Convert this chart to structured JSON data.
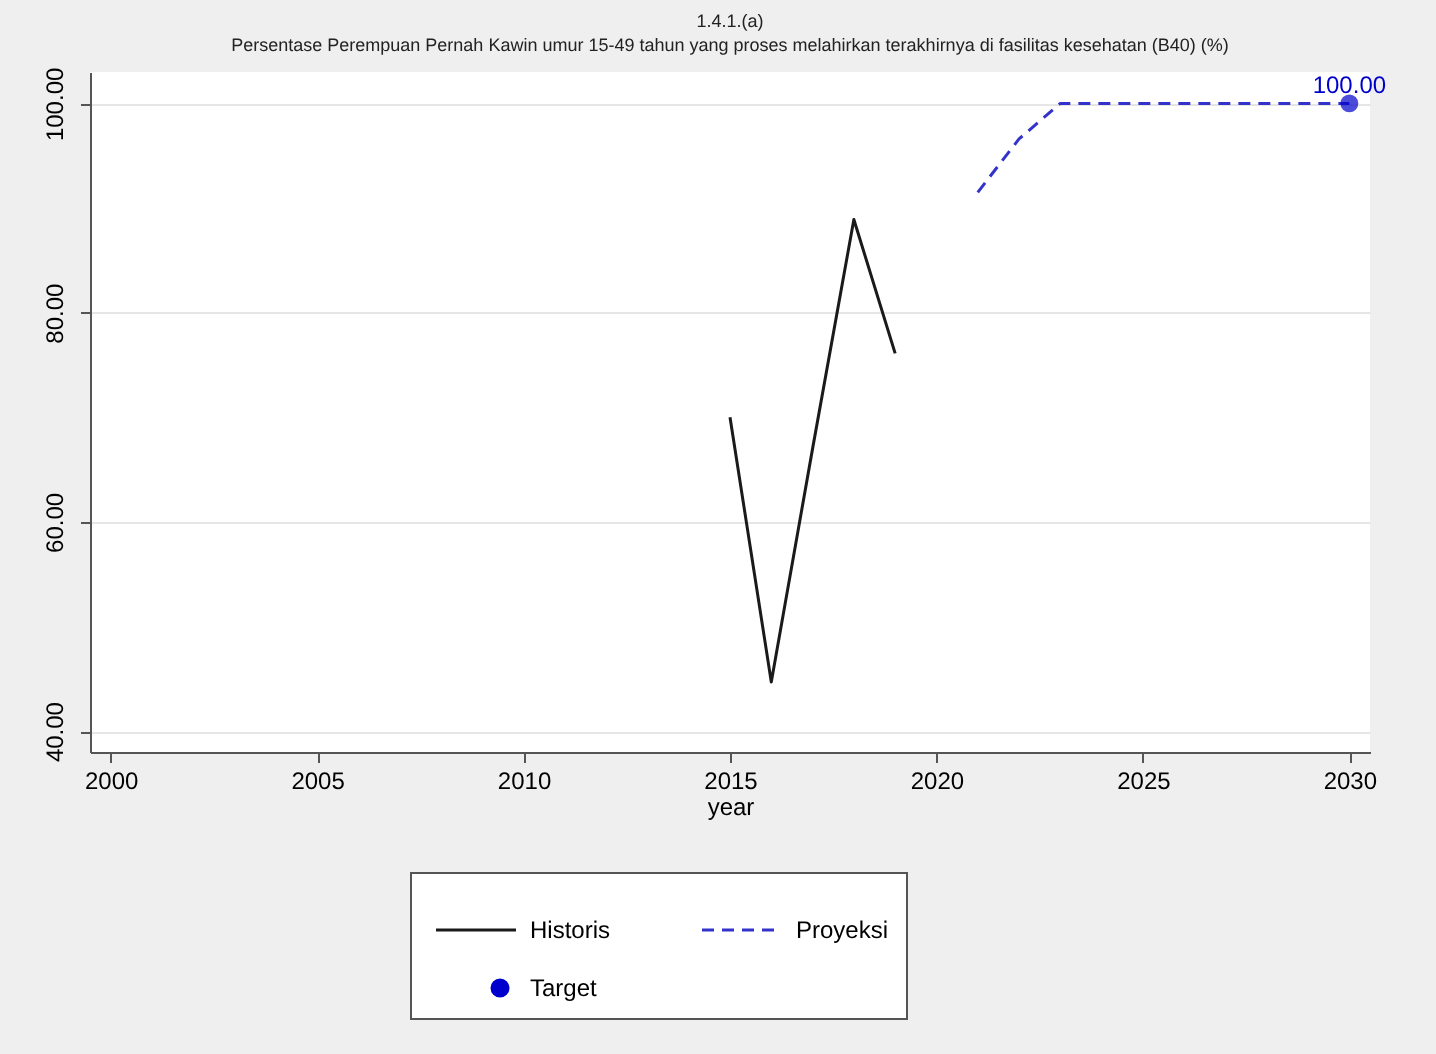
{
  "chart_data": {
    "type": "line",
    "title": "1.4.1.(a)",
    "subtitle": "Persentase Perempuan Pernah Kawin umur 15-49 tahun yang proses melahirkan terakhirnya di fasilitas kesehatan (B40) (%)",
    "xlabel": "year",
    "xlim": [
      1999.5,
      2030.5
    ],
    "xticks": [
      2000,
      2005,
      2010,
      2015,
      2020,
      2025,
      2030
    ],
    "ylim": [
      38,
      103
    ],
    "yticks": [
      {
        "value": 40,
        "label": "40.00"
      },
      {
        "value": 60,
        "label": "60.00"
      },
      {
        "value": 80,
        "label": "80.00"
      },
      {
        "value": 100,
        "label": "100.00"
      }
    ],
    "grid": "y",
    "legend": "bottom",
    "series": [
      {
        "name": "Historis",
        "type": "line",
        "line_style": "solid",
        "color": "#1a1a1a",
        "x": [
          2015,
          2016,
          2017,
          2018,
          2019
        ],
        "values": [
          70,
          44.7,
          67,
          88.9,
          76.1
        ]
      },
      {
        "name": "Proyeksi",
        "type": "line",
        "line_style": "dashed",
        "color": "#3333cc",
        "x": [
          2021,
          2022,
          2023,
          2024,
          2025,
          2026,
          2027,
          2028,
          2029,
          2030
        ],
        "values": [
          91.5,
          96.6,
          100,
          100,
          100,
          100,
          100,
          100,
          100,
          100
        ]
      },
      {
        "name": "Target",
        "type": "scatter",
        "marker": "circle",
        "color": "#0000cc",
        "x": [
          2030
        ],
        "values": [
          100
        ],
        "value_labels": [
          "100.00"
        ]
      }
    ]
  }
}
